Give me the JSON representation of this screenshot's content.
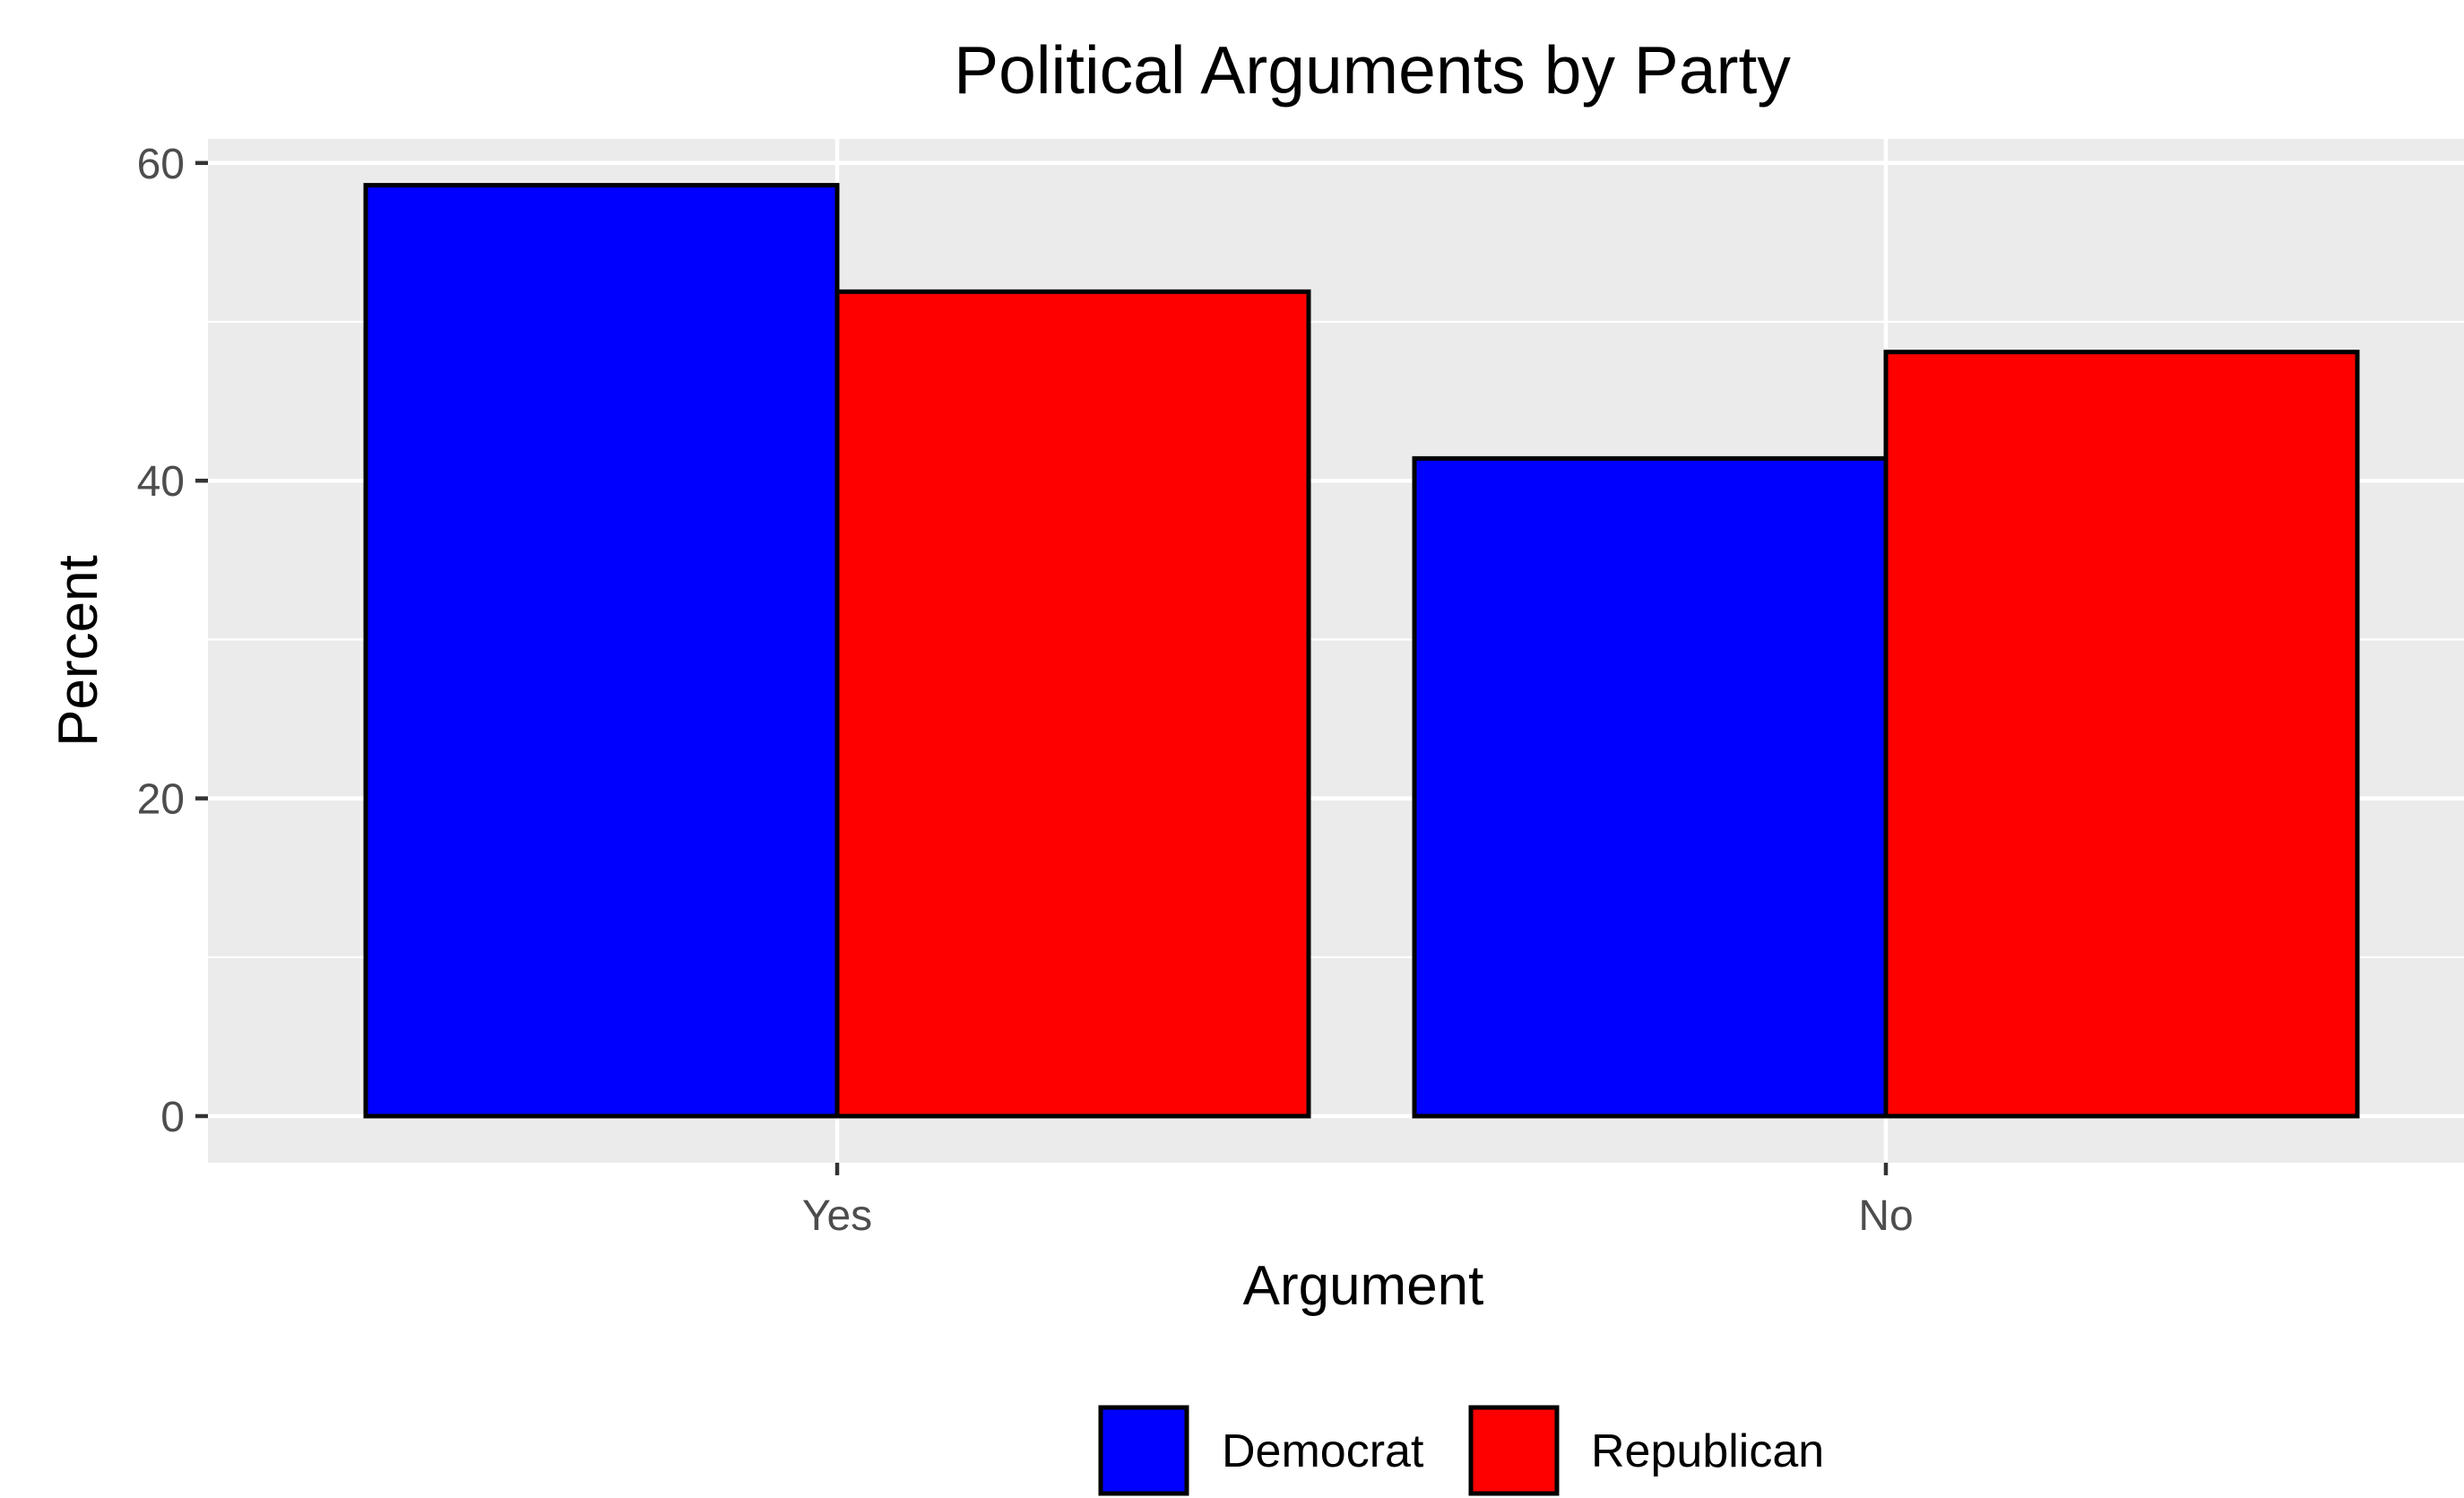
{
  "chart_data": {
    "type": "bar",
    "title": "Political Arguments by Party",
    "xlabel": "Argument",
    "ylabel": "Percent",
    "categories": [
      "Yes",
      "No"
    ],
    "series": [
      {
        "name": "Democrat",
        "color": "#0000FF",
        "values": [
          58.6,
          41.4
        ]
      },
      {
        "name": "Republican",
        "color": "#FF0000",
        "values": [
          51.9,
          48.1
        ]
      }
    ],
    "ylim": [
      -7.5,
      64
    ],
    "yticks": [
      0,
      20,
      40,
      60
    ],
    "yticks_minor": [
      10,
      30,
      50
    ],
    "grid": true,
    "legend_position": "bottom",
    "bar_outline_color": "#000000",
    "panel_background": "#EBEBEB"
  }
}
